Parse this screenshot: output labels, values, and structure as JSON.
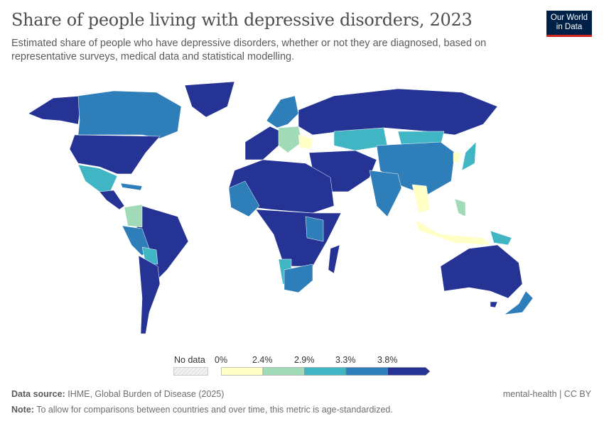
{
  "header": {
    "title": "Share of people living with depressive disorders, 2023",
    "subtitle": "Estimated share of people who have depressive disorders, whether or not they are diagnosed, based on representative surveys, medical data and statistical modelling.",
    "logo": "Our World in Data"
  },
  "colors": {
    "no_data": "#e6e6e6",
    "bin1": "#ffffc6",
    "bin2": "#a0dab7",
    "bin3": "#40b6c4",
    "bin4": "#2e7fb9",
    "bin5": "#253494"
  },
  "legend": {
    "no_data_label": "No data",
    "ticks": [
      "0%",
      "2.4%",
      "2.9%",
      "3.3%",
      "3.8%"
    ]
  },
  "chart_data": {
    "type": "choropleth",
    "year": 2023,
    "bins": [
      {
        "min": "0%",
        "max": "2.4%",
        "color": "#ffffc6"
      },
      {
        "min": "2.4%",
        "max": "2.9%",
        "color": "#a0dab7"
      },
      {
        "min": "2.9%",
        "max": "3.3%",
        "color": "#40b6c4"
      },
      {
        "min": "3.3%",
        "max": "3.8%",
        "color": "#2e7fb9"
      },
      {
        "min": "3.8%",
        "max": null,
        "color": "#253494"
      }
    ]
  },
  "footer": {
    "source_label": "Data source:",
    "source": "IHME, Global Burden of Disease (2025)",
    "note_label": "Note:",
    "note": "To allow for comparisons between countries and over time, this metric is age-standardized.",
    "license": "mental-health | CC BY"
  }
}
